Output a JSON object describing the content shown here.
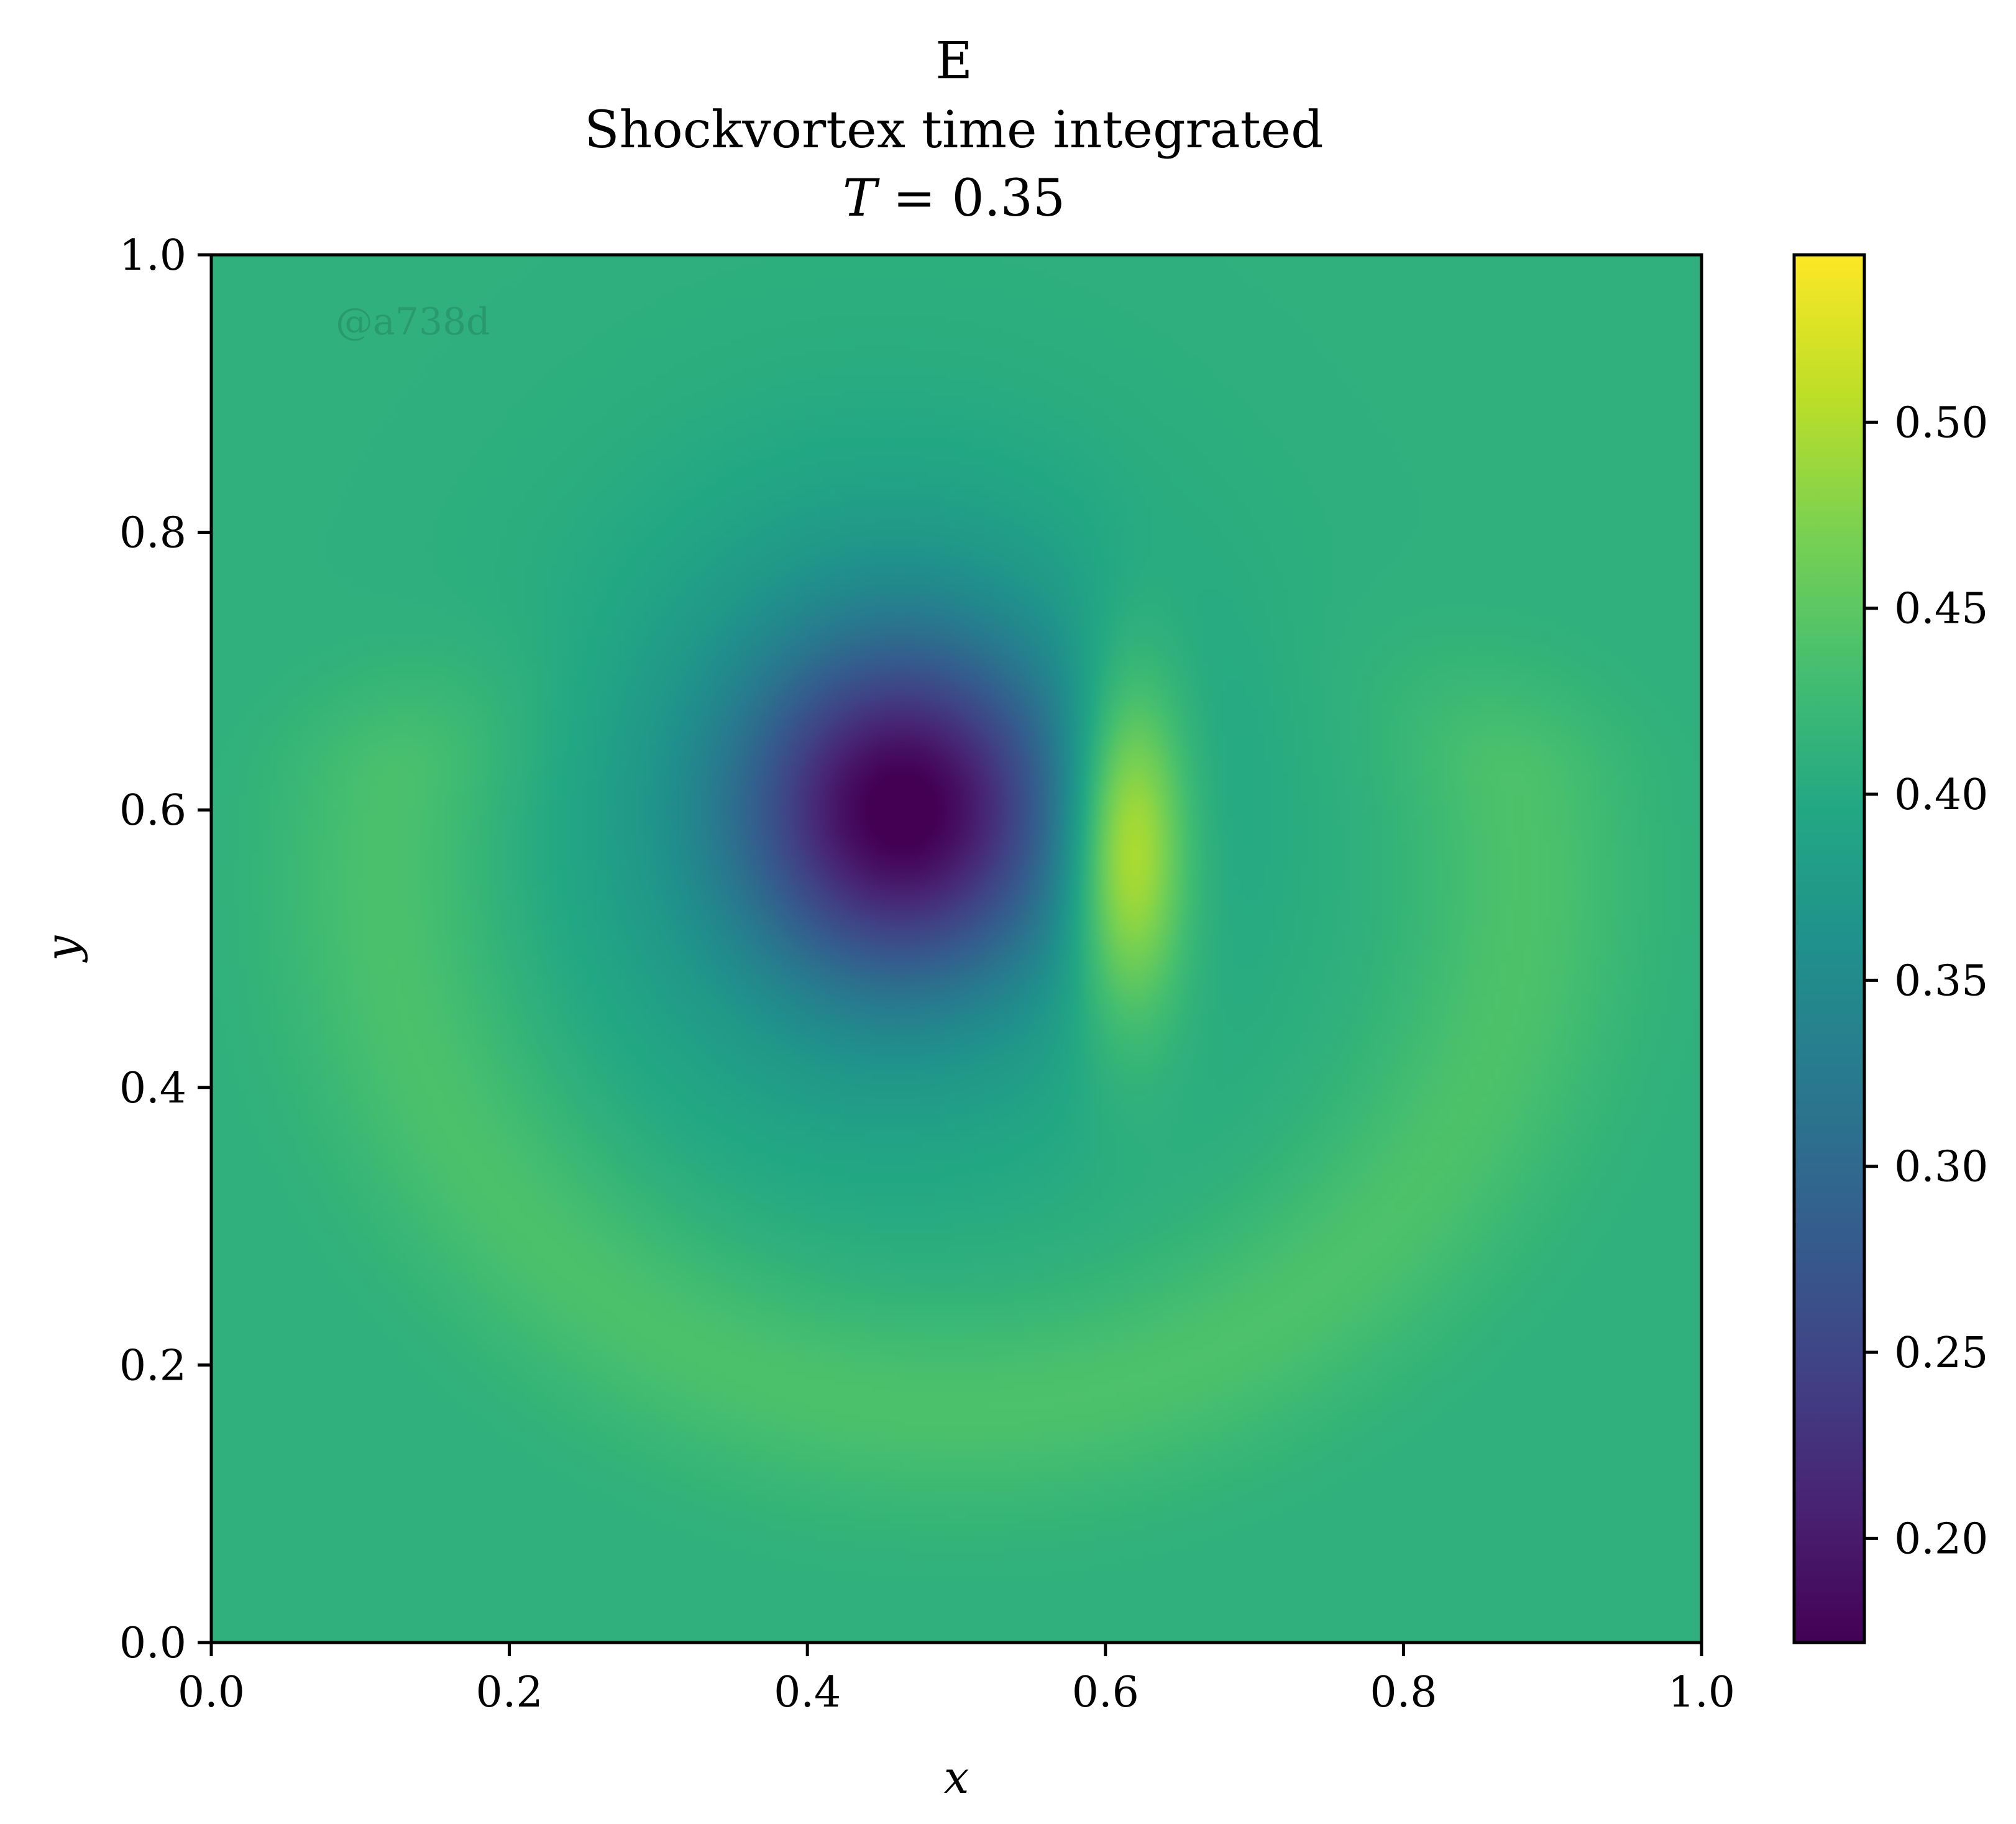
{
  "chart_data": {
    "type": "heatmap",
    "title": "E",
    "subtitle": "Shockvortex time integrated",
    "subtitle2": {
      "lhs": "T",
      "rest": " = 0.35"
    },
    "xlabel": "x",
    "ylabel": "y",
    "xlim": [
      0.0,
      1.0
    ],
    "ylim": [
      0.0,
      1.0
    ],
    "xticks": [
      "0.0",
      "0.2",
      "0.4",
      "0.6",
      "0.8",
      "1.0"
    ],
    "yticks": [
      "0.0",
      "0.2",
      "0.4",
      "0.6",
      "0.8",
      "1.0"
    ],
    "colormap": "viridis",
    "colorbar": {
      "vmin": 0.172,
      "vmax": 0.545,
      "ticks": [
        "0.20",
        "0.25",
        "0.30",
        "0.35",
        "0.40",
        "0.45",
        "0.50"
      ]
    },
    "watermark": "@a738d",
    "field_features": {
      "background": 0.41,
      "minimum": {
        "x": 0.465,
        "y": 0.6,
        "value": 0.172
      },
      "maximum": {
        "x": 0.615,
        "y": 0.575,
        "value": 0.545
      },
      "low_band": {
        "center_x": 0.5,
        "center_y": 0.55,
        "radius": 0.38,
        "value": 0.44
      }
    },
    "grid": false
  }
}
